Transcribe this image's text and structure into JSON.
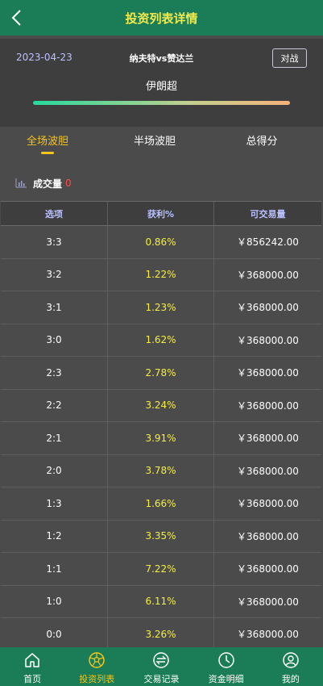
{
  "header": {
    "title": "投资列表详情",
    "back_icon": "chevron-left-icon"
  },
  "match": {
    "date": "2023-04-23",
    "teams": "纳夫特vs赞达兰",
    "vs_label": "对战",
    "league": "伊朗超"
  },
  "tabs": [
    {
      "label": "全场波胆",
      "active": true
    },
    {
      "label": "半场波胆",
      "active": false
    },
    {
      "label": "总得分",
      "active": false
    }
  ],
  "volume": {
    "label": "成交量",
    "value": "0",
    "icon": "bar-chart-icon"
  },
  "table": {
    "headers": [
      "选项",
      "获利%",
      "可交易量"
    ],
    "rows": [
      [
        "3:3",
        "0.86%",
        "￥856242.00"
      ],
      [
        "3:2",
        "1.22%",
        "￥368000.00"
      ],
      [
        "3:1",
        "1.23%",
        "￥368000.00"
      ],
      [
        "3:0",
        "1.62%",
        "￥368000.00"
      ],
      [
        "2:3",
        "2.78%",
        "￥368000.00"
      ],
      [
        "2:2",
        "3.24%",
        "￥368000.00"
      ],
      [
        "2:1",
        "3.91%",
        "￥368000.00"
      ],
      [
        "2:0",
        "3.78%",
        "￥368000.00"
      ],
      [
        "1:3",
        "1.66%",
        "￥368000.00"
      ],
      [
        "1:2",
        "3.35%",
        "￥368000.00"
      ],
      [
        "1:1",
        "7.22%",
        "￥368000.00"
      ],
      [
        "1:0",
        "6.11%",
        "￥368000.00"
      ],
      [
        "0:0",
        "3.26%",
        "￥368000.00"
      ]
    ]
  },
  "nav": [
    {
      "label": "首页",
      "icon": "home-icon",
      "active": false
    },
    {
      "label": "投资列表",
      "icon": "football-icon",
      "active": true
    },
    {
      "label": "交易记录",
      "icon": "exchange-icon",
      "active": false
    },
    {
      "label": "资金明细",
      "icon": "clock-icon",
      "active": false
    },
    {
      "label": "我的",
      "icon": "user-icon",
      "active": false
    }
  ],
  "colors": {
    "brand_green": "#1a7d57",
    "accent_yellow": "#f5c51a",
    "profit_yellow": "#f5ee3c",
    "header_lavender": "#b9c1ff",
    "volume_red": "#ff4a4a"
  }
}
